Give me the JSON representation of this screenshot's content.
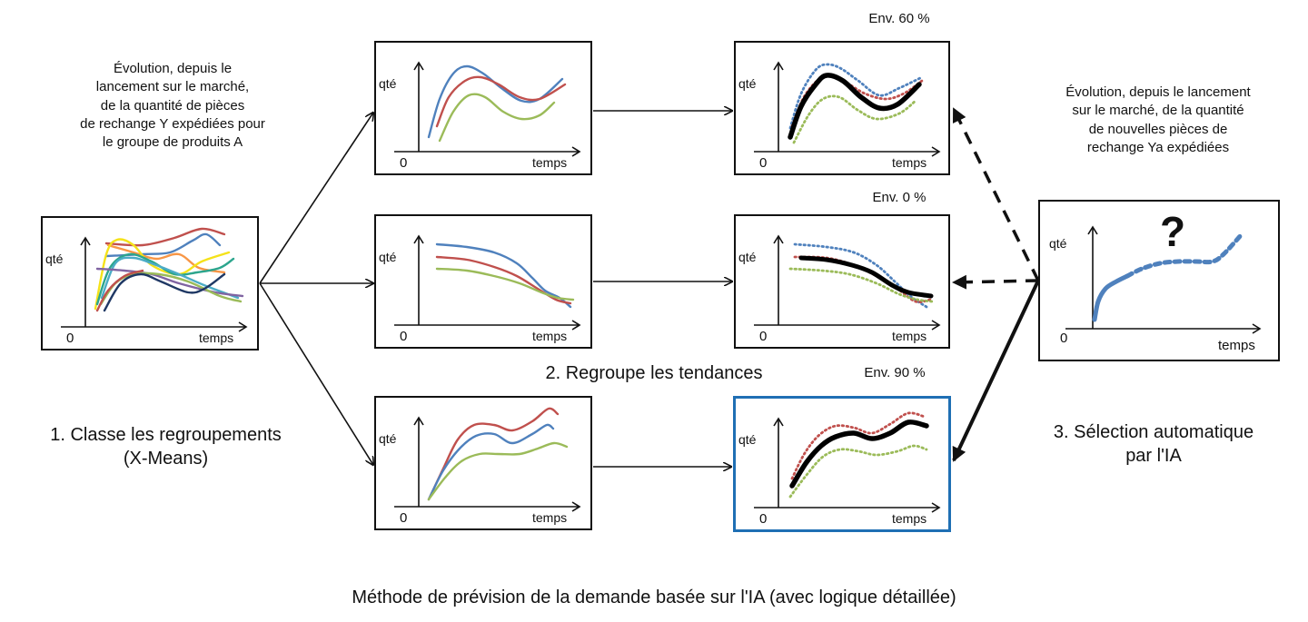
{
  "left_description": [
    "Évolution, depuis le",
    "lancement sur le marché,",
    "de la quantité de pièces",
    "de rechange Y expédiées pour",
    "le groupe de produits A"
  ],
  "right_description": [
    "Évolution, depuis le lancement",
    "sur le marché, de la quantité",
    "de nouvelles pièces de",
    "rechange Ya expédiées"
  ],
  "step1": [
    "1. Classe les regroupements",
    "(X-Means)"
  ],
  "step2": "2. Regroupe les tendances",
  "step3": [
    "3. Sélection automatique",
    "par l'IA"
  ],
  "percent_top": "Env. 60 %",
  "percent_mid": "Env. 0 %",
  "percent_bottom": "Env. 90 %",
  "caption": "Méthode de prévision de la demande basée sur l'IA (avec logique détaillée)",
  "axis": {
    "y_label": "qté",
    "x_label": "temps",
    "origin": "0"
  },
  "question_mark": "?",
  "colors": {
    "blue": "#4f81bd",
    "red": "#c0504d",
    "green": "#9bbb59",
    "black": "#000000",
    "highlight_border": "#1f6fb4",
    "new_part_curve": "#4f81bd",
    "yellow": "#f5e21a",
    "teal": "#2ca58d",
    "purple": "#8064a2",
    "orange": "#f79646",
    "navy": "#1f3864",
    "cyan": "#4bacc6"
  }
}
